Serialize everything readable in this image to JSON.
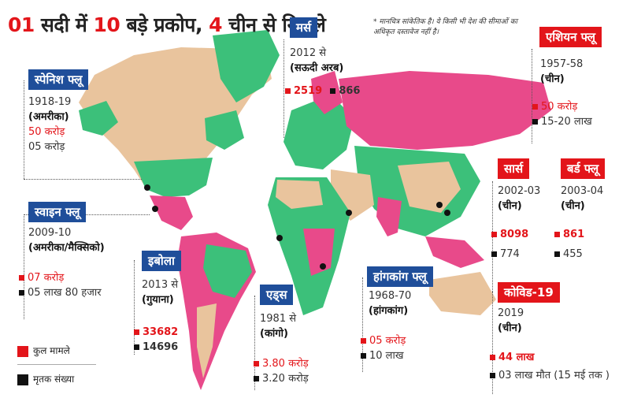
{
  "title": {
    "part1": "01",
    "part2": " सदी में ",
    "part3": "10",
    "part4": " बड़े प्रकोप, ",
    "part5": "4",
    "part6": " चीन से निकले"
  },
  "note": "* मानचित्र सांकेतिक है। ये किसी भी देश की सीमाओं का अधिकृत दस्तावेज नहीं है।",
  "colors": {
    "cases": "#e3151a",
    "deaths": "#111111",
    "header_blue": "#1f4e9a",
    "header_red": "#e3151a",
    "map_green": "#3cc07a",
    "map_pink": "#e84a8a",
    "map_tan": "#e9c49d"
  },
  "outbreaks": {
    "spanish": {
      "name": "स्पेनिश फ्लू",
      "years": "1918-19",
      "place": "(अमरीका)",
      "cases": "50 करोड़",
      "deaths": "05 करोड़"
    },
    "swine": {
      "name": "स्वाइन फ्लू",
      "years": "2009-10",
      "place": "(अमरीका/मैक्सिको)",
      "cases": "07 करोड़",
      "deaths": "05 लाख 80 हजार"
    },
    "ebola": {
      "name": "इबोला",
      "years": "2013 से",
      "place": "(गुयाना)",
      "cases": "33682",
      "deaths": "14696"
    },
    "aids": {
      "name": "एड्स",
      "years": "1981 से",
      "place": "(कांगो)",
      "cases": "3.80 करोड़",
      "deaths": "3.20 करोड़"
    },
    "mers": {
      "name": "मर्स",
      "years": "2012 से",
      "place": "(सऊदी अरब)",
      "cases": "2519",
      "deaths": "866"
    },
    "hongkong": {
      "name": "हांगकांग फ्लू",
      "years": "1968-70",
      "place": "(हांगकांग)",
      "cases": "05 करोड़",
      "deaths": "10 लाख"
    },
    "asian": {
      "name": "एशियन फ्लू",
      "years": "1957-58",
      "place": "(चीन)",
      "cases": "50 करोड़",
      "deaths": "15-20 लाख"
    },
    "sars": {
      "name": "सार्स",
      "years": "2002-03",
      "place": "(चीन)",
      "cases": "8098",
      "deaths": "774"
    },
    "bird": {
      "name": "बर्ड फ्लू",
      "years": "2003-04",
      "place": "(चीन)",
      "cases": "861",
      "deaths": "455"
    },
    "covid": {
      "name": "कोविड-19",
      "years": "2019",
      "place": "(चीन)",
      "cases": "44 लाख",
      "deaths": "03 लाख मौत (15 मई तक )"
    }
  },
  "legend": {
    "cases_label": "कुल मामले",
    "deaths_label": "मृतक संख्या"
  }
}
